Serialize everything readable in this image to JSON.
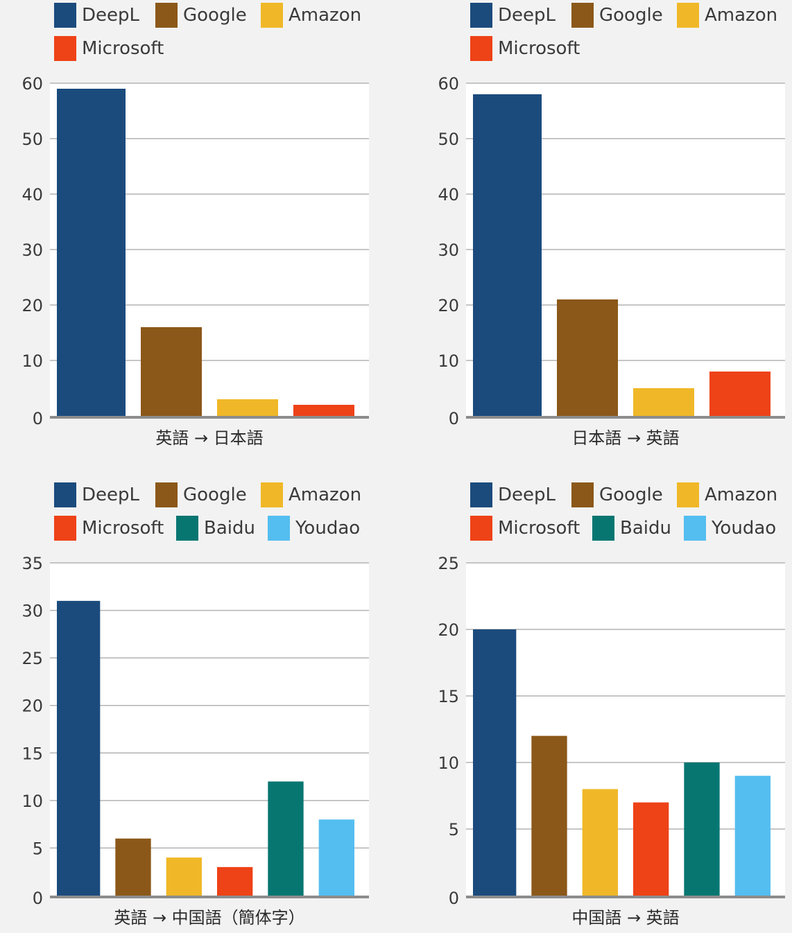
{
  "colors": {
    "DeepL": "#1b4b7d",
    "Google": "#8b5819",
    "Amazon": "#f0b828",
    "Microsoft": "#ee4217",
    "Baidu": "#077671",
    "Youdao": "#54bef0"
  },
  "chart_data": [
    {
      "type": "bar",
      "xlabel": "英語 → 日本語",
      "categories": [
        "DeepL",
        "Google",
        "Amazon",
        "Microsoft"
      ],
      "values": [
        59,
        16,
        3,
        2
      ],
      "ylim": [
        0,
        60
      ],
      "yticks": [
        0,
        10,
        20,
        30,
        40,
        50,
        60
      ],
      "legend_position": "top-left",
      "grid": true
    },
    {
      "type": "bar",
      "xlabel": "日本語 → 英語",
      "categories": [
        "DeepL",
        "Google",
        "Amazon",
        "Microsoft"
      ],
      "values": [
        58,
        21,
        5,
        8
      ],
      "ylim": [
        0,
        60
      ],
      "yticks": [
        0,
        10,
        20,
        30,
        40,
        50,
        60
      ],
      "legend_position": "top-left",
      "grid": true
    },
    {
      "type": "bar",
      "xlabel": "英語 → 中国語（簡体字）",
      "categories": [
        "DeepL",
        "Google",
        "Amazon",
        "Microsoft",
        "Baidu",
        "Youdao"
      ],
      "values": [
        31,
        6,
        4,
        3,
        12,
        8
      ],
      "ylim": [
        0,
        35
      ],
      "yticks": [
        0,
        5,
        10,
        15,
        20,
        25,
        30,
        35
      ],
      "legend_position": "top-left",
      "grid": true
    },
    {
      "type": "bar",
      "xlabel": "中国語 → 英語",
      "categories": [
        "DeepL",
        "Google",
        "Amazon",
        "Microsoft",
        "Baidu",
        "Youdao"
      ],
      "values": [
        20,
        12,
        8,
        7,
        10,
        9
      ],
      "ylim": [
        0,
        25
      ],
      "yticks": [
        0,
        5,
        10,
        15,
        20,
        25
      ],
      "legend_position": "top-left",
      "grid": true
    }
  ]
}
